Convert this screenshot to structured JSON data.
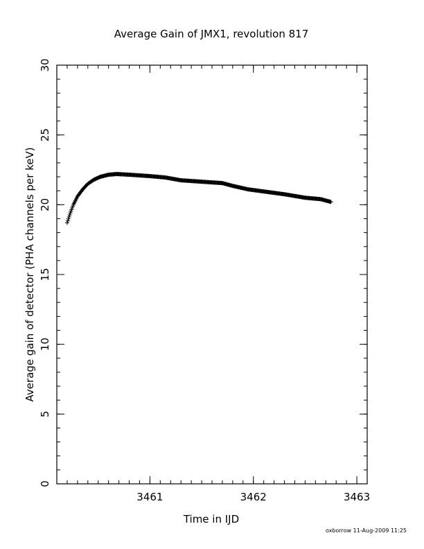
{
  "chart_data": {
    "type": "scatter",
    "title": "Average Gain of JMX1, revolution 817",
    "xlabel": "Time in IJD",
    "ylabel": "Average gain of detector (PHA channels per keV)",
    "xlim": [
      3460.1,
      3463.1
    ],
    "ylim": [
      0,
      30
    ],
    "x_ticks": [
      3461,
      3462,
      3463
    ],
    "x_tick_labels": [
      "3461",
      "3462",
      "3463"
    ],
    "y_ticks": [
      0,
      5,
      10,
      15,
      20,
      25,
      30
    ],
    "y_tick_labels": [
      "0",
      "5",
      "10",
      "15",
      "20",
      "25",
      "30"
    ],
    "x_minor_step": 0.1,
    "y_minor_step": 1,
    "grid": false,
    "marker": "plus",
    "curve": [
      {
        "x": 3460.2,
        "y": 18.7
      },
      {
        "x": 3460.23,
        "y": 19.4
      },
      {
        "x": 3460.26,
        "y": 20.0
      },
      {
        "x": 3460.3,
        "y": 20.6
      },
      {
        "x": 3460.35,
        "y": 21.1
      },
      {
        "x": 3460.4,
        "y": 21.5
      },
      {
        "x": 3460.46,
        "y": 21.8
      },
      {
        "x": 3460.52,
        "y": 22.0
      },
      {
        "x": 3460.6,
        "y": 22.15
      },
      {
        "x": 3460.68,
        "y": 22.2
      },
      {
        "x": 3460.8,
        "y": 22.15
      },
      {
        "x": 3461.0,
        "y": 22.05
      },
      {
        "x": 3461.15,
        "y": 21.95
      },
      {
        "x": 3461.3,
        "y": 21.75
      },
      {
        "x": 3461.5,
        "y": 21.65
      },
      {
        "x": 3461.7,
        "y": 21.55
      },
      {
        "x": 3461.8,
        "y": 21.35
      },
      {
        "x": 3461.95,
        "y": 21.1
      },
      {
        "x": 3462.1,
        "y": 20.95
      },
      {
        "x": 3462.3,
        "y": 20.75
      },
      {
        "x": 3462.5,
        "y": 20.5
      },
      {
        "x": 3462.65,
        "y": 20.4
      },
      {
        "x": 3462.75,
        "y": 20.2
      }
    ]
  },
  "footer": {
    "stamp": "oxborrow 11-Aug-2009 11:25"
  }
}
